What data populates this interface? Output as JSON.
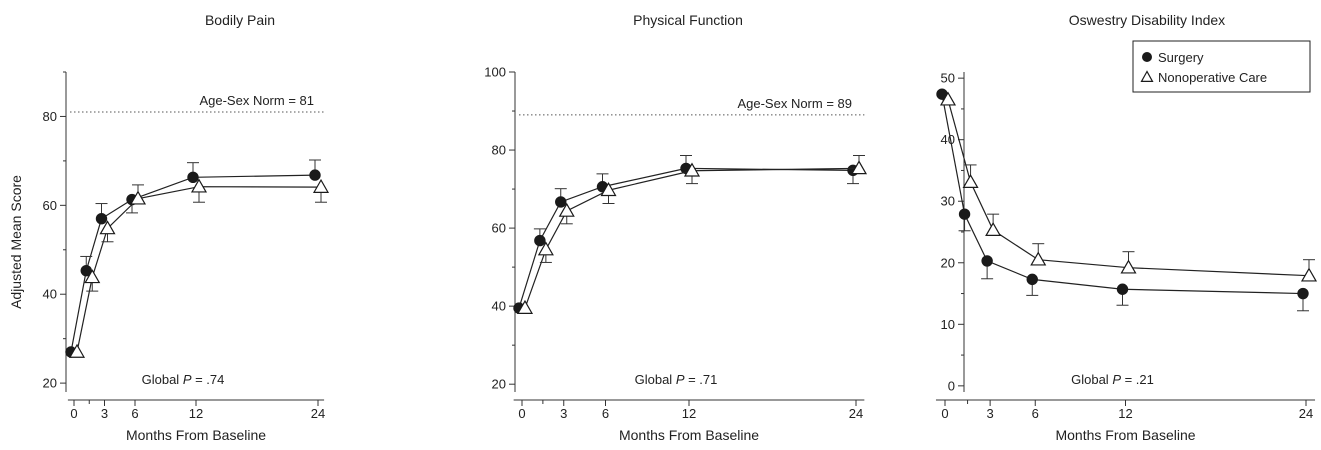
{
  "chart_data": [
    {
      "type": "line",
      "title": "Bodily Pain",
      "xlabel": "Months From Baseline",
      "ylabel": "Adjusted Mean Score",
      "xticks": [
        0,
        3,
        6,
        12,
        24
      ],
      "yticks": [
        20,
        40,
        60,
        80
      ],
      "xlim": [
        -0.6,
        24.6
      ],
      "ylim": [
        18,
        90
      ],
      "norm": {
        "label": "Age-Sex Norm = 81",
        "value": 81
      },
      "pvalue": {
        "prefix": "Global ",
        "p": "P",
        "value": " = .74"
      },
      "series": [
        {
          "name": "Surgery",
          "marker": "circle",
          "x": [
            0,
            1.5,
            3,
            6,
            12,
            24
          ],
          "y": [
            27,
            45.3,
            57,
            61.3,
            66.3,
            66.8
          ],
          "err": [
            0,
            3.2,
            3.4,
            3.0,
            3.3,
            3.4
          ]
        },
        {
          "name": "Nonoperative Care",
          "marker": "triangle",
          "x": [
            0,
            1.5,
            3,
            6,
            12,
            24
          ],
          "y": [
            27,
            43.8,
            54.8,
            61.5,
            64.2,
            64.1
          ],
          "err": [
            0,
            3.1,
            3.0,
            3.1,
            3.5,
            3.4
          ]
        }
      ]
    },
    {
      "type": "line",
      "title": "Physical Function",
      "xlabel": "Months From Baseline",
      "ylabel": "",
      "xticks": [
        0,
        3,
        6,
        12,
        24
      ],
      "yticks": [
        20,
        40,
        60,
        80,
        100
      ],
      "xlim": [
        -0.6,
        24.6
      ],
      "ylim": [
        18,
        100
      ],
      "norm": {
        "label": "Age-Sex Norm = 89",
        "value": 89
      },
      "pvalue": {
        "prefix": "Global ",
        "p": "P",
        "value": " = .71"
      },
      "series": [
        {
          "name": "Surgery",
          "marker": "circle",
          "x": [
            0,
            1.5,
            3,
            6,
            12,
            24
          ],
          "y": [
            39.5,
            56.8,
            66.7,
            70.6,
            75.3,
            74.8
          ],
          "err": [
            0,
            3.0,
            3.4,
            3.3,
            3.3,
            3.4
          ]
        },
        {
          "name": "Nonoperative Care",
          "marker": "triangle",
          "x": [
            0,
            1.5,
            3,
            6,
            12,
            24
          ],
          "y": [
            39.5,
            54.5,
            64.4,
            69.7,
            74.7,
            75.3
          ],
          "err": [
            0,
            3.3,
            3.3,
            3.4,
            3.3,
            3.3
          ]
        }
      ]
    },
    {
      "type": "line",
      "title": "Oswestry Disability Index",
      "xlabel": "Months From Baseline",
      "ylabel": "",
      "xticks": [
        0,
        3,
        6,
        12,
        24
      ],
      "yticks": [
        0,
        10,
        20,
        30,
        40,
        50
      ],
      "xlim": [
        -0.6,
        24.6
      ],
      "ylim": [
        -1,
        51
      ],
      "norm": null,
      "pvalue": {
        "prefix": "Global ",
        "p": "P",
        "value": " = .21"
      },
      "legend": {
        "placement": "top-right",
        "items": [
          {
            "label": "Surgery",
            "marker": "circle"
          },
          {
            "label": "Nonoperative Care",
            "marker": "triangle"
          }
        ]
      },
      "series": [
        {
          "name": "Surgery",
          "marker": "circle",
          "x": [
            0,
            1.5,
            3,
            6,
            12,
            24
          ],
          "y": [
            47.4,
            27.9,
            20.3,
            17.3,
            15.7,
            15.0
          ],
          "err": [
            0,
            2.7,
            2.9,
            2.6,
            2.6,
            2.8
          ]
        },
        {
          "name": "Nonoperative Care",
          "marker": "triangle",
          "x": [
            0,
            1.5,
            3,
            6,
            12,
            24
          ],
          "y": [
            46.5,
            33.1,
            25.3,
            20.5,
            19.2,
            17.9
          ],
          "err": [
            0,
            2.8,
            2.6,
            2.6,
            2.6,
            2.6
          ]
        }
      ]
    }
  ]
}
